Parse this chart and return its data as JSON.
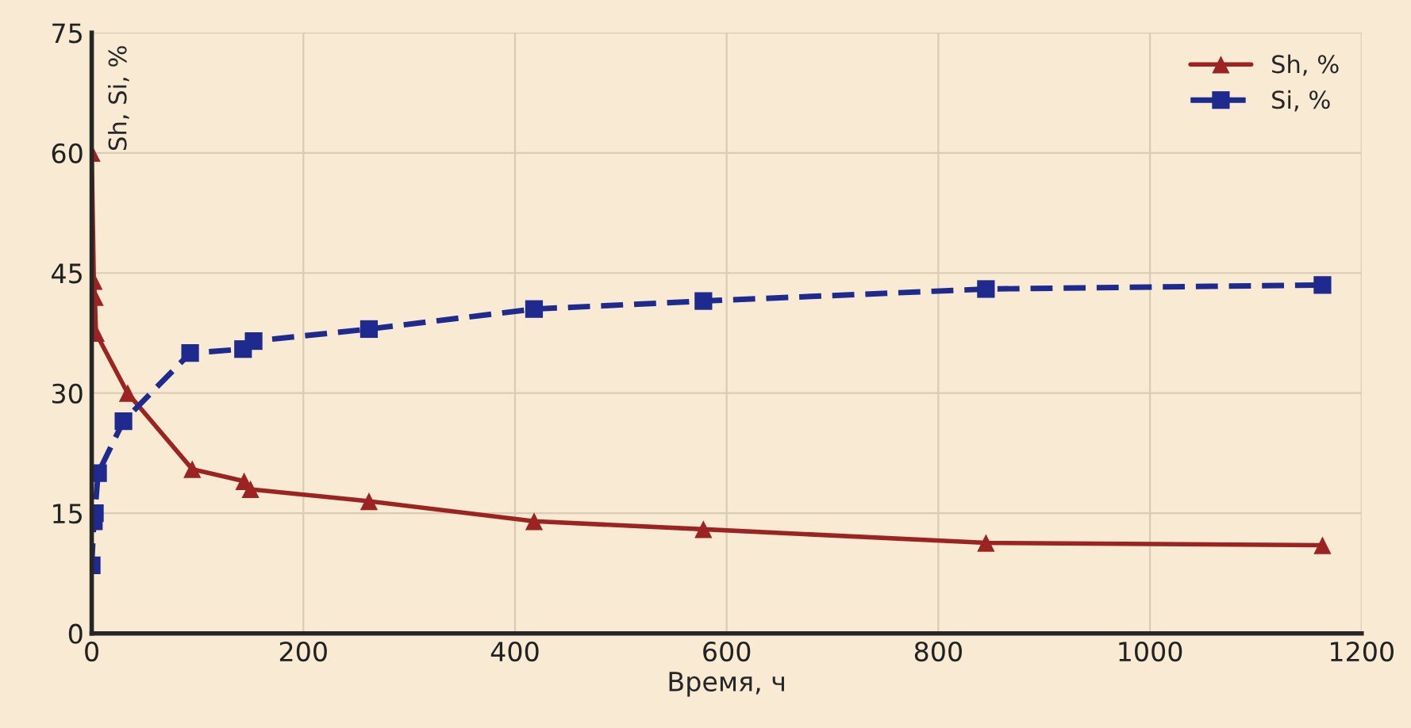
{
  "chart_data": {
    "type": "line",
    "xlabel": "Время, ч",
    "ylabel": "Sh, Si, %",
    "series": [
      {
        "name": "Sh, %",
        "color": "#9b2423",
        "marker": "triangle",
        "line_style": "solid",
        "x": [
          0,
          2,
          3,
          4,
          34,
          95,
          144,
          150,
          262,
          418,
          578,
          845,
          1163
        ],
        "values": [
          60,
          44,
          42,
          37.5,
          30,
          20.5,
          19,
          18,
          16.5,
          14,
          13,
          11.3,
          11
        ]
      },
      {
        "name": "Si, %",
        "color": "#1f2a8f",
        "marker": "square",
        "line_style": "dashed",
        "x": [
          0,
          2,
          3,
          6,
          30,
          93,
          143,
          153,
          262,
          418,
          578,
          845,
          1163
        ],
        "values": [
          8.5,
          14,
          15,
          20,
          26.5,
          35,
          35.5,
          36.5,
          38,
          40.5,
          41.5,
          43,
          43.5
        ]
      }
    ],
    "xlim": [
      0,
      1200
    ],
    "xticks": [
      0,
      200,
      400,
      600,
      800,
      1000,
      1200
    ],
    "ylim": [
      0,
      75
    ],
    "yticks": [
      0,
      15,
      30,
      45,
      60,
      75
    ],
    "grid": true,
    "legend": "top right"
  }
}
